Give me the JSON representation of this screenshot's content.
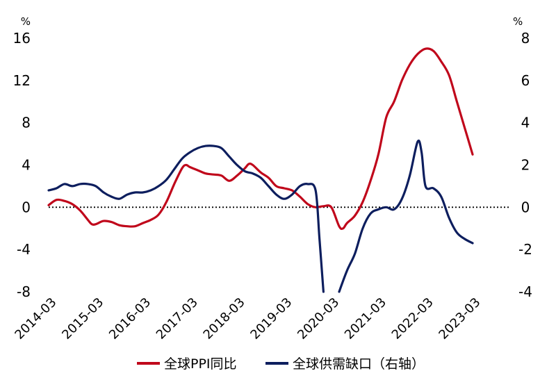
{
  "chart_data": {
    "type": "line",
    "left_axis": {
      "unit": "%",
      "ylim": [
        -8,
        16
      ],
      "ticks": [
        16,
        12,
        8,
        4,
        0,
        -4,
        -8
      ]
    },
    "right_axis": {
      "unit": "%",
      "ylim": [
        -4,
        8
      ],
      "ticks": [
        8,
        6,
        4,
        2,
        0,
        -2,
        -4
      ]
    },
    "x_tick_labels": [
      "2014-03",
      "2015-03",
      "2016-03",
      "2017-03",
      "2018-03",
      "2019-03",
      "2020-03",
      "2021-03",
      "2022-03",
      "2023-03"
    ],
    "zero_line": "dotted",
    "grid": false,
    "legend_position": "bottom",
    "series": [
      {
        "name": "全球PPI同比",
        "axis": "left",
        "color": "#c0071b",
        "points": [
          [
            "2014-03",
            0.2
          ],
          [
            "2014-05",
            0.7
          ],
          [
            "2014-07",
            0.6
          ],
          [
            "2014-09",
            0.3
          ],
          [
            "2014-11",
            -0.3
          ],
          [
            "2015-01",
            -1.2
          ],
          [
            "2015-02",
            -1.6
          ],
          [
            "2015-03",
            -1.6
          ],
          [
            "2015-05",
            -1.3
          ],
          [
            "2015-07",
            -1.4
          ],
          [
            "2015-09",
            -1.7
          ],
          [
            "2015-11",
            -1.8
          ],
          [
            "2016-01",
            -1.8
          ],
          [
            "2016-03",
            -1.5
          ],
          [
            "2016-05",
            -1.2
          ],
          [
            "2016-07",
            -0.7
          ],
          [
            "2016-09",
            0.5
          ],
          [
            "2016-11",
            2.2
          ],
          [
            "2017-01",
            3.7
          ],
          [
            "2017-02",
            4.0
          ],
          [
            "2017-03",
            3.8
          ],
          [
            "2017-05",
            3.5
          ],
          [
            "2017-07",
            3.2
          ],
          [
            "2017-09",
            3.1
          ],
          [
            "2017-11",
            3.0
          ],
          [
            "2018-01",
            2.5
          ],
          [
            "2018-03",
            3.0
          ],
          [
            "2018-05",
            3.7
          ],
          [
            "2018-06",
            4.1
          ],
          [
            "2018-07",
            4.0
          ],
          [
            "2018-09",
            3.3
          ],
          [
            "2018-11",
            2.8
          ],
          [
            "2019-01",
            2.0
          ],
          [
            "2019-03",
            1.8
          ],
          [
            "2019-05",
            1.6
          ],
          [
            "2019-07",
            1.0
          ],
          [
            "2019-09",
            0.3
          ],
          [
            "2019-11",
            0.0
          ],
          [
            "2020-01",
            0.1
          ],
          [
            "2020-03",
            0.0
          ],
          [
            "2020-05",
            -1.8
          ],
          [
            "2020-06",
            -2.0
          ],
          [
            "2020-07",
            -1.5
          ],
          [
            "2020-09",
            -0.8
          ],
          [
            "2020-11",
            0.5
          ],
          [
            "2021-01",
            2.5
          ],
          [
            "2021-03",
            5.0
          ],
          [
            "2021-05",
            8.5
          ],
          [
            "2021-07",
            10.0
          ],
          [
            "2021-09",
            12.0
          ],
          [
            "2021-11",
            13.5
          ],
          [
            "2022-01",
            14.5
          ],
          [
            "2022-03",
            15.0
          ],
          [
            "2022-05",
            14.8
          ],
          [
            "2022-07",
            13.8
          ],
          [
            "2022-09",
            12.5
          ],
          [
            "2022-11",
            10.0
          ],
          [
            "2023-01",
            7.5
          ],
          [
            "2023-03",
            5.0
          ]
        ]
      },
      {
        "name": "全球供需缺口（右轴）",
        "axis": "right",
        "color": "#0d1e5e",
        "points": [
          [
            "2014-03",
            0.8
          ],
          [
            "2014-05",
            0.9
          ],
          [
            "2014-07",
            1.1
          ],
          [
            "2014-09",
            1.0
          ],
          [
            "2014-11",
            1.1
          ],
          [
            "2015-01",
            1.1
          ],
          [
            "2015-03",
            1.0
          ],
          [
            "2015-05",
            0.7
          ],
          [
            "2015-07",
            0.5
          ],
          [
            "2015-09",
            0.4
          ],
          [
            "2015-11",
            0.6
          ],
          [
            "2016-01",
            0.7
          ],
          [
            "2016-03",
            0.7
          ],
          [
            "2016-05",
            0.8
          ],
          [
            "2016-07",
            1.0
          ],
          [
            "2016-09",
            1.3
          ],
          [
            "2016-11",
            1.8
          ],
          [
            "2017-01",
            2.3
          ],
          [
            "2017-03",
            2.6
          ],
          [
            "2017-05",
            2.8
          ],
          [
            "2017-07",
            2.9
          ],
          [
            "2017-09",
            2.9
          ],
          [
            "2017-11",
            2.8
          ],
          [
            "2018-01",
            2.4
          ],
          [
            "2018-03",
            2.0
          ],
          [
            "2018-05",
            1.7
          ],
          [
            "2018-07",
            1.6
          ],
          [
            "2018-09",
            1.4
          ],
          [
            "2018-11",
            1.0
          ],
          [
            "2019-01",
            0.6
          ],
          [
            "2019-03",
            0.4
          ],
          [
            "2019-05",
            0.6
          ],
          [
            "2019-07",
            1.0
          ],
          [
            "2019-09",
            1.1
          ],
          [
            "2019-11",
            0.8
          ],
          [
            "2019-12",
            -1.5
          ],
          [
            "2020-01",
            -4.0
          ]
        ],
        "points_after_gap": [
          [
            "2020-05",
            -4.0
          ],
          [
            "2020-07",
            -3.0
          ],
          [
            "2020-09",
            -2.2
          ],
          [
            "2020-11",
            -1.0
          ],
          [
            "2021-01",
            -0.3
          ],
          [
            "2021-03",
            -0.1
          ],
          [
            "2021-05",
            0.0
          ],
          [
            "2021-07",
            -0.1
          ],
          [
            "2021-09",
            0.4
          ],
          [
            "2021-11",
            1.5
          ],
          [
            "2022-01",
            3.1
          ],
          [
            "2022-02",
            2.6
          ],
          [
            "2022-03",
            1.0
          ],
          [
            "2022-05",
            0.9
          ],
          [
            "2022-07",
            0.5
          ],
          [
            "2022-09",
            -0.5
          ],
          [
            "2022-11",
            -1.2
          ],
          [
            "2023-01",
            -1.5
          ],
          [
            "2023-03",
            -1.7
          ]
        ]
      }
    ]
  }
}
